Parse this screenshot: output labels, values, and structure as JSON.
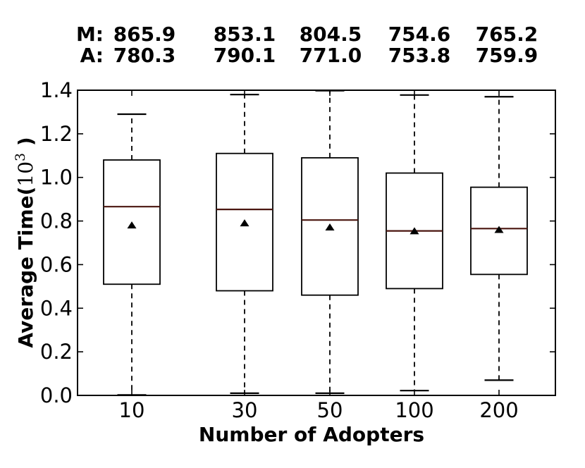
{
  "chart_data": {
    "type": "boxplot",
    "title": "",
    "xlabel": "Number of Adopters",
    "ylabel": {
      "bold_prefix": "Average Time(",
      "math_base": "10",
      "math_exponent": "3",
      "bold_suffix": " )"
    },
    "unit_scale": "10^3",
    "categories": [
      "10",
      "30",
      "50",
      "100",
      "200"
    ],
    "header": {
      "median_prefix": "M:",
      "average_prefix": "A:",
      "median_values": [
        "865.9",
        "853.1",
        "804.5",
        "754.6",
        "765.2"
      ],
      "average_values": [
        "780.3",
        "790.1",
        "771.0",
        "753.8",
        "759.9"
      ]
    },
    "series": [
      {
        "label": "10",
        "whisker_low": 0.002,
        "q1": 0.51,
        "median": 0.8659,
        "mean": 0.7803,
        "q3": 1.08,
        "whisker_high": 1.29
      },
      {
        "label": "30",
        "whisker_low": 0.01,
        "q1": 0.48,
        "median": 0.8531,
        "mean": 0.7901,
        "q3": 1.11,
        "whisker_high": 1.38
      },
      {
        "label": "50",
        "whisker_low": 0.01,
        "q1": 0.46,
        "median": 0.8045,
        "mean": 0.771,
        "q3": 1.09,
        "whisker_high": 1.398
      },
      {
        "label": "100",
        "whisker_low": 0.022,
        "q1": 0.49,
        "median": 0.7546,
        "mean": 0.7538,
        "q3": 1.02,
        "whisker_high": 1.378
      },
      {
        "label": "200",
        "whisker_low": 0.07,
        "q1": 0.555,
        "median": 0.7652,
        "mean": 0.7599,
        "q3": 0.955,
        "whisker_high": 1.37
      }
    ],
    "ylim": [
      0.0,
      1.4
    ],
    "yticks": [
      "0.0",
      "0.2",
      "0.4",
      "0.6",
      "0.8",
      "1.0",
      "1.2",
      "1.4"
    ],
    "mean_marker": "filled-triangle-up",
    "whisker_style": "dashed",
    "legend": "none",
    "grid": false,
    "colors": {
      "background": "#ffffff",
      "box_edge": "#000000",
      "median_line": "#4a150f",
      "mean_marker": "#000000",
      "text": "#000000"
    }
  }
}
